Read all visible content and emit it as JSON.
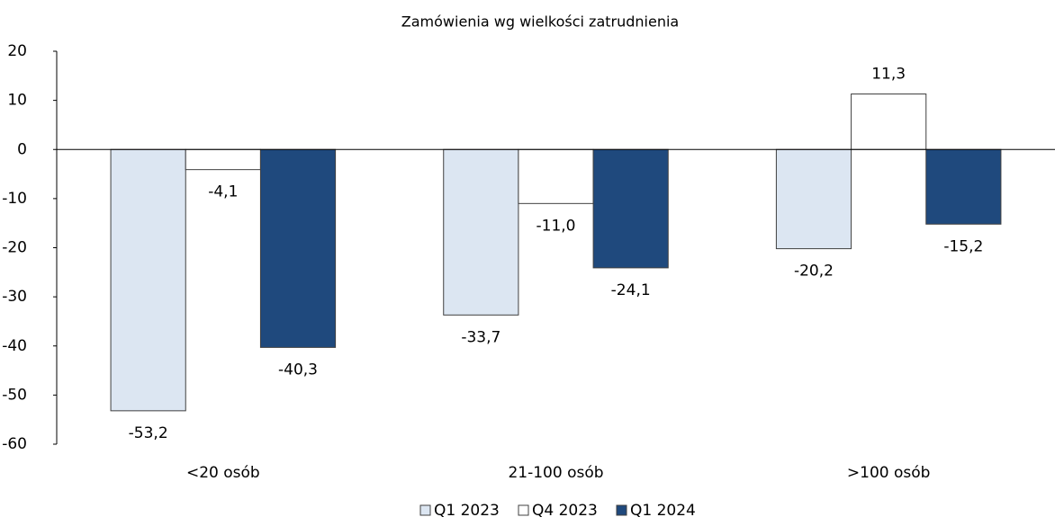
{
  "chart_data": {
    "type": "bar",
    "title": "Zamówienia wg wielkości zatrudnienia",
    "categories": [
      "<20 osób",
      "21-100 osób",
      ">100 osób"
    ],
    "series": [
      {
        "name": "Q1 2023",
        "color": "#dce6f2",
        "values": [
          -53.2,
          -33.7,
          -20.2
        ],
        "value_labels": [
          "-53,2",
          "-33,7",
          "-20,2"
        ]
      },
      {
        "name": "Q4 2023",
        "color": "#ffffff",
        "values": [
          -4.1,
          -11.0,
          11.3
        ],
        "value_labels": [
          "-4,1",
          "-11,0",
          "11,3"
        ]
      },
      {
        "name": "Q1 2024",
        "color": "#1f497d",
        "values": [
          -40.3,
          -24.1,
          -15.2
        ],
        "value_labels": [
          "-40,3",
          "-24,1",
          "-15,2"
        ]
      }
    ],
    "ylim": [
      -60,
      20
    ],
    "yticks": [
      -60,
      -50,
      -40,
      -30,
      -20,
      -10,
      0,
      10,
      20
    ],
    "grid": false
  }
}
